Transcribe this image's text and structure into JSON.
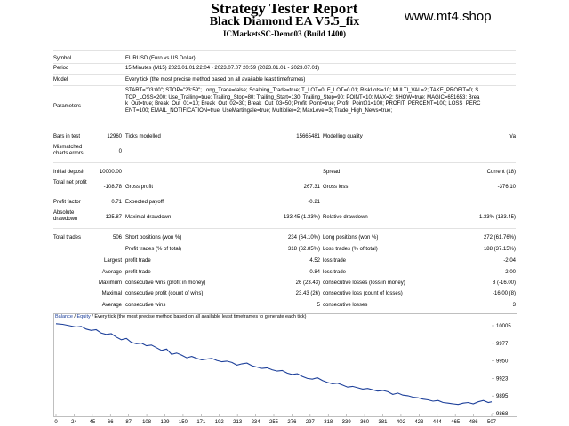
{
  "header": {
    "title": "Strategy Tester Report",
    "subtitle": "Black Diamond EA V5.5_fix",
    "server": "ICMarketsSC-Demo03 (Build 1400)",
    "watermark": "www.mt4.shop"
  },
  "info": {
    "symbol_label": "Symbol",
    "symbol_value": "EURUSD (Euro vs US Dollar)",
    "period_label": "Period",
    "period_value": "15 Minutes (M15) 2023.01.01 22:04 - 2023.07.07 20:59 (2023.01.01 - 2023.07.01)",
    "model_label": "Model",
    "model_value": "Every tick (the most precise method based on all available least timeframes)",
    "parameters_label": "Parameters",
    "parameters_value": "START=\"03:00\"; STOP=\"23:59\"; Long_Trade=false; Scalping_Trade=true; T_LOT=0; F_LOT=0.01; RiskLots=10; MULTI_VAL=2; TAKE_PROFIT=0; STOP_LOSS=200; Use_Trailing=true; Trailing_Stop=80; Trailing_Start=130; Trailing_Step=90; POINT=10; MAX=2; SHOW=true; MAGIC=651653; Break_Out=true; Break_Out_01=10; Break_Out_02=30; Break_Out_03=50; Profit_Point=true; Profit_Point01=100; PROFIT_PERCENT=100; LOSS_PERCENT=100; EMAIL_NOTIFICATION=true; UseMartingale=true; Multiplier=2; MaxLevel=3; Trade_High_News=true;"
  },
  "quality": {
    "bars_label": "Bars in test",
    "bars_value": "12960",
    "ticks_label": "Ticks modelled",
    "ticks_value": "15665481",
    "mq_label": "Modelling quality",
    "mq_value": "n/a",
    "mismatch_label": "Mismatched charts errors",
    "mismatch_value": "0"
  },
  "summary": {
    "deposit_label": "Initial deposit",
    "deposit_value": "10000.00",
    "spread_label": "Spread",
    "spread_value": "Current (18)",
    "net_label": "Total net profit",
    "net_value": "-108.78",
    "gross_profit_label": "Gross profit",
    "gross_profit_value": "267.31",
    "gross_loss_label": "Gross loss",
    "gross_loss_value": "-376.10",
    "pf_label": "Profit factor",
    "pf_value": "0.71",
    "ep_label": "Expected payoff",
    "ep_value": "-0.21",
    "abs_dd_label": "Absolute drawdown",
    "abs_dd_value": "125.87",
    "max_dd_label": "Maximal drawdown",
    "max_dd_value": "133.45 (1.33%)",
    "rel_dd_label": "Relative drawdown",
    "rel_dd_value": "1.33% (133.45)"
  },
  "trades": {
    "total_label": "Total trades",
    "total_value": "506",
    "short_label": "Short positions (won %)",
    "short_value": "234 (64.10%)",
    "long_label": "Long positions (won %)",
    "long_value": "272 (61.76%)",
    "profit_trades_label": "Profit trades (% of total)",
    "profit_trades_value": "318 (62.85%)",
    "loss_trades_label": "Loss trades (% of total)",
    "loss_trades_value": "188 (37.15%)",
    "largest_label": "Largest",
    "largest_profit_label": "profit trade",
    "largest_profit_value": "4.52",
    "largest_loss_label": "loss trade",
    "largest_loss_value": "-2.04",
    "average_label": "Average",
    "avg_profit_label": "profit trade",
    "avg_profit_value": "0.84",
    "avg_loss_label": "loss trade",
    "avg_loss_value": "-2.00",
    "maximum_label": "Maximum",
    "max_cons_wins_label": "consecutive wins (profit in money)",
    "max_cons_wins_value": "26 (23.43)",
    "max_cons_losses_label": "consecutive losses (loss in money)",
    "max_cons_losses_value": "8 (-16.00)",
    "maximal_label": "Maximal",
    "maxl_cons_profit_label": "consecutive profit (count of wins)",
    "maxl_cons_profit_value": "23.43 (26)",
    "maxl_cons_loss_label": "consecutive loss (count of losses)",
    "maxl_cons_loss_value": "-16.00 (8)",
    "average2_label": "Average",
    "avg_cons_wins_label": "consecutive wins",
    "avg_cons_wins_value": "5",
    "avg_cons_losses_label": "consecutive losses",
    "avg_cons_losses_value": "3"
  },
  "chart_data": {
    "type": "line",
    "legend_balance": "Balance",
    "legend_sep": " / ",
    "legend_equity": "Equity",
    "legend_rest": " / Every tick (the most precise method based on all available least timeframes to generate each tick)",
    "x_ticks": [
      "0",
      "24",
      "45",
      "66",
      "87",
      "108",
      "129",
      "150",
      "171",
      "192",
      "213",
      "234",
      "255",
      "276",
      "297",
      "318",
      "339",
      "360",
      "381",
      "402",
      "423",
      "444",
      "465",
      "486",
      "507"
    ],
    "y_ticks": [
      "10005",
      "9977",
      "9950",
      "9923",
      "9895",
      "9868"
    ],
    "xlim": [
      0,
      520
    ],
    "ylim": [
      9868,
      10005
    ],
    "color_balance": "#1c3f9a",
    "series": [
      {
        "x": [
          0,
          8,
          16,
          24,
          30,
          36,
          42,
          48,
          54,
          60,
          66,
          72,
          78,
          84,
          90,
          96,
          102,
          108,
          114,
          120,
          126,
          132,
          138,
          144,
          150,
          156,
          162,
          168,
          174,
          180,
          186,
          192,
          198,
          204,
          210,
          216,
          222,
          228,
          234,
          240,
          246,
          252,
          258,
          264,
          270,
          276,
          282,
          288,
          294,
          300,
          306,
          312,
          318,
          324,
          330,
          336,
          342,
          348,
          354,
          360,
          366,
          372,
          378,
          384,
          390,
          396,
          402,
          408,
          414,
          420,
          426,
          432,
          438,
          444,
          450,
          456,
          462,
          468,
          474,
          480,
          486,
          492,
          498,
          504,
          510,
          516,
          520
        ],
        "y": [
          10004,
          10003,
          10001,
          9999,
          10000,
          9996,
          9994,
          9995,
          9990,
          9988,
          9989,
          9984,
          9980,
          9982,
          9976,
          9974,
          9975,
          9971,
          9972,
          9968,
          9964,
          9966,
          9958,
          9960,
          9957,
          9953,
          9955,
          9952,
          9950,
          9951,
          9952,
          9949,
          9947,
          9948,
          9946,
          9942,
          9944,
          9945,
          9941,
          9939,
          9937,
          9938,
          9935,
          9933,
          9934,
          9930,
          9928,
          9929,
          9925,
          9922,
          9921,
          9923,
          9919,
          9916,
          9914,
          9915,
          9912,
          9909,
          9910,
          9908,
          9906,
          9907,
          9905,
          9903,
          9904,
          9902,
          9898,
          9900,
          9897,
          9896,
          9894,
          9893,
          9891,
          9890,
          9888,
          9889,
          9886,
          9885,
          9884,
          9883,
          9885,
          9886,
          9884,
          9887,
          9889,
          9886,
          9887
        ]
      }
    ]
  }
}
